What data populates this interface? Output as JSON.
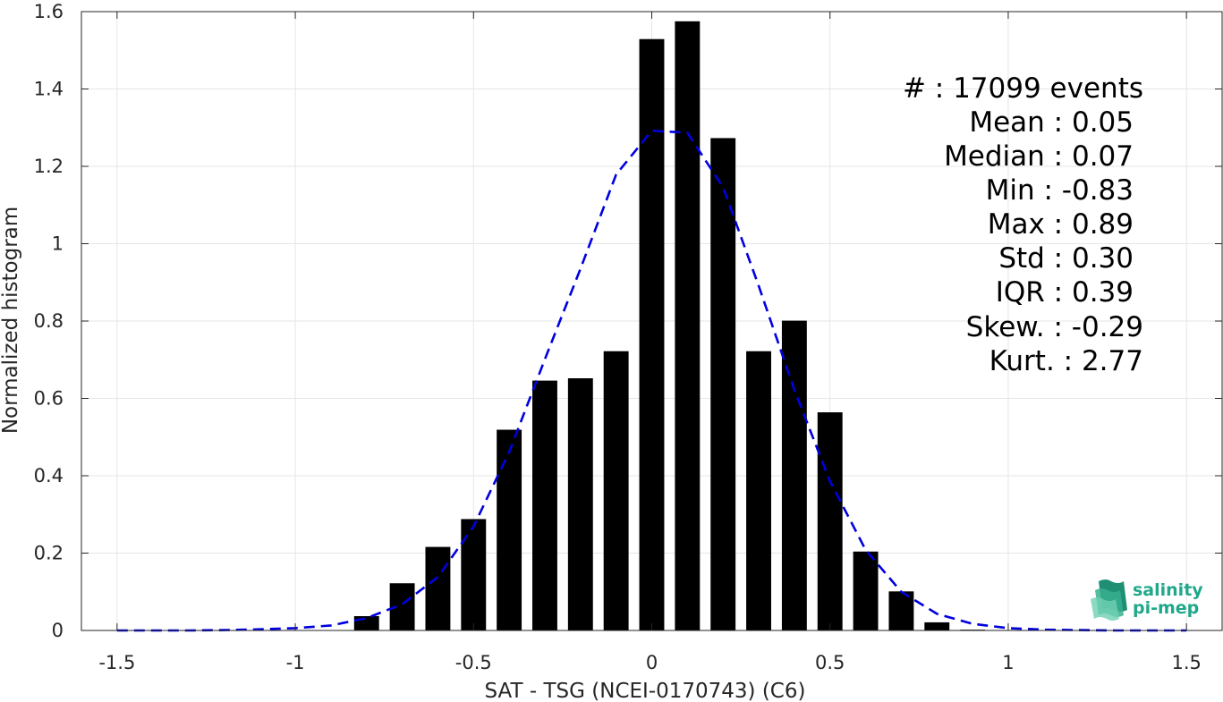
{
  "chart_data": {
    "type": "bar",
    "xlabel": "SAT - TSG (NCEI-0170743) (C6)",
    "ylabel": "Normalized histogram",
    "xlim": [
      -1.6,
      1.6
    ],
    "ylim": [
      0,
      1.6
    ],
    "xticks": [
      -1.5,
      -1,
      -0.5,
      0,
      0.5,
      1,
      1.5
    ],
    "xtick_labels": [
      "-1.5",
      "-1",
      "-0.5",
      "0",
      "0.5",
      "1",
      "1.5"
    ],
    "yticks": [
      0,
      0.2,
      0.4,
      0.6,
      0.8,
      1,
      1.2,
      1.4,
      1.6
    ],
    "ytick_labels": [
      "0",
      "0.2",
      "0.4",
      "0.6",
      "0.8",
      "1",
      "1.2",
      "1.4",
      "1.6"
    ],
    "grid": true,
    "bar_width": 0.07,
    "bar_color": "#000000",
    "bins": [
      {
        "x": -0.8,
        "value": 0.037
      },
      {
        "x": -0.7,
        "value": 0.122
      },
      {
        "x": -0.6,
        "value": 0.216
      },
      {
        "x": -0.5,
        "value": 0.288
      },
      {
        "x": -0.4,
        "value": 0.519
      },
      {
        "x": -0.3,
        "value": 0.646
      },
      {
        "x": -0.2,
        "value": 0.652
      },
      {
        "x": -0.1,
        "value": 0.722
      },
      {
        "x": 0.0,
        "value": 1.529
      },
      {
        "x": 0.1,
        "value": 1.575
      },
      {
        "x": 0.2,
        "value": 1.273
      },
      {
        "x": 0.3,
        "value": 0.722
      },
      {
        "x": 0.4,
        "value": 0.801
      },
      {
        "x": 0.5,
        "value": 0.564
      },
      {
        "x": 0.6,
        "value": 0.204
      },
      {
        "x": 0.7,
        "value": 0.101
      },
      {
        "x": 0.8,
        "value": 0.021
      },
      {
        "x": 0.9,
        "value": 0.002
      }
    ],
    "fit_curve": {
      "type": "gaussian",
      "color": "#0000e0",
      "style": "dashed",
      "x": [
        -1.5,
        -1.4,
        -1.3,
        -1.2,
        -1.1,
        -1.0,
        -0.9,
        -0.8,
        -0.7,
        -0.6,
        -0.5,
        -0.4,
        -0.3,
        -0.2,
        -0.1,
        0.0,
        0.1,
        0.2,
        0.3,
        0.4,
        0.5,
        0.6,
        0.7,
        0.8,
        0.9,
        1.0,
        1.1,
        1.2,
        1.3,
        1.4,
        1.5
      ],
      "y": [
        0.0,
        0.0,
        0.0,
        0.001,
        0.003,
        0.006,
        0.013,
        0.032,
        0.068,
        0.138,
        0.269,
        0.461,
        0.701,
        0.935,
        1.179,
        1.292,
        1.287,
        1.146,
        0.891,
        0.622,
        0.386,
        0.208,
        0.1,
        0.043,
        0.017,
        0.006,
        0.002,
        0.001,
        0.0,
        0.0,
        0.0
      ]
    },
    "stats": [
      "#  : 17099 events",
      "Mean : 0.05",
      "Median : 0.07",
      "Min : -0.83",
      "Max : 0.89",
      "Std : 0.30",
      "IQR : 0.39",
      "Skew. : -0.29",
      "Kurt. : 2.77"
    ]
  },
  "logo": {
    "line1": "salinity",
    "line2": "pi-mep",
    "color": "#1fa88a"
  }
}
